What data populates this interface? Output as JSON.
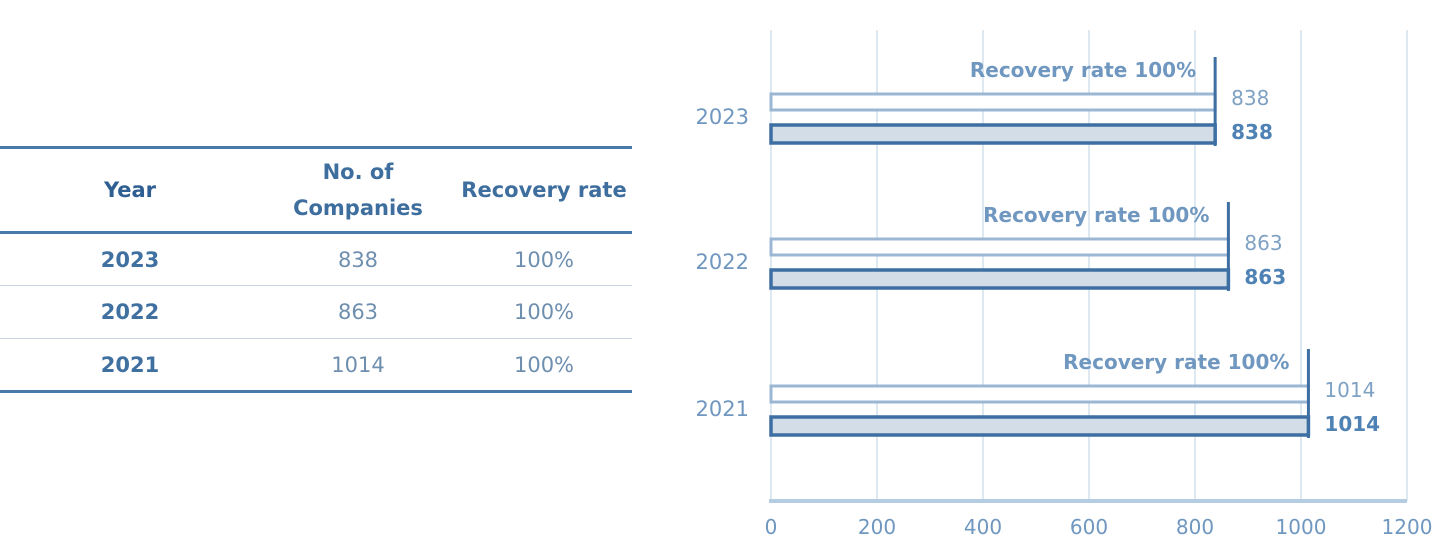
{
  "table": {
    "headers": {
      "year": "Year",
      "companies_line1": "No. of",
      "companies_line2": "Companies",
      "recovery": "Recovery rate"
    },
    "rows": [
      {
        "year": "2023",
        "companies": "838",
        "recovery": "100%"
      },
      {
        "year": "2022",
        "companies": "863",
        "recovery": "100%"
      },
      {
        "year": "2021",
        "companies": "1014",
        "recovery": "100%"
      }
    ]
  },
  "chart_data": {
    "type": "bar",
    "orientation": "horizontal",
    "categories": [
      "2023",
      "2022",
      "2021"
    ],
    "series": [
      {
        "values": [
          838,
          863,
          1014
        ],
        "color": "#9bb7d4"
      },
      {
        "values": [
          838,
          863,
          1014
        ],
        "color": "#3e6fa3",
        "fill": "#d3dde8"
      }
    ],
    "annotations": [
      "Recovery rate 100%",
      "Recovery rate 100%",
      "Recovery rate 100%"
    ],
    "xlim": [
      0,
      1200
    ],
    "xticks": [
      0,
      200,
      400,
      600,
      800,
      1000,
      1200
    ],
    "grid": true,
    "colors": {
      "axis": "#b5cde2",
      "grid": "#d4e1ec",
      "label": "#6f97bf",
      "label_dark": "#4f82b4"
    }
  }
}
